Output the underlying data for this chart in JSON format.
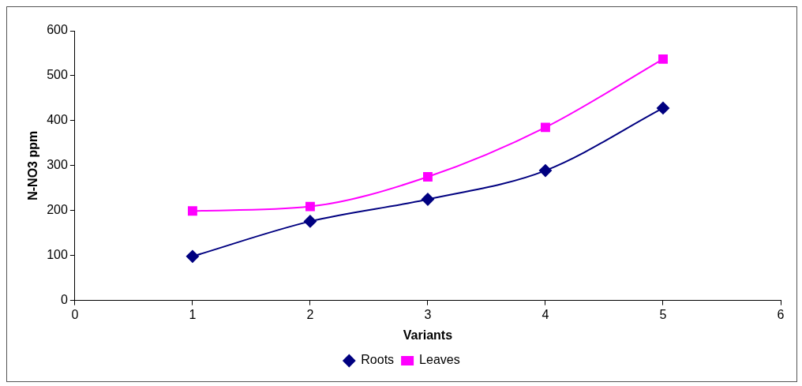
{
  "chart_data": {
    "type": "line",
    "xlabel": "Variants",
    "ylabel": "N-NO3 ppm",
    "x": [
      1,
      2,
      3,
      4,
      5
    ],
    "series": [
      {
        "name": "Roots",
        "color": "#000080",
        "marker": "diamond",
        "values": [
          98,
          176,
          225,
          289,
          428
        ]
      },
      {
        "name": "Leaves",
        "color": "#ff00ff",
        "marker": "square",
        "values": [
          199,
          209,
          275,
          385,
          537
        ]
      }
    ],
    "xlim": [
      0,
      6
    ],
    "xticks": [
      0,
      1,
      2,
      3,
      4,
      5,
      6
    ],
    "ylim": [
      0,
      600
    ],
    "yticks": [
      0,
      100,
      200,
      300,
      400,
      500,
      600
    ],
    "grid": false,
    "legend": "bottom",
    "line_style": "solid"
  }
}
